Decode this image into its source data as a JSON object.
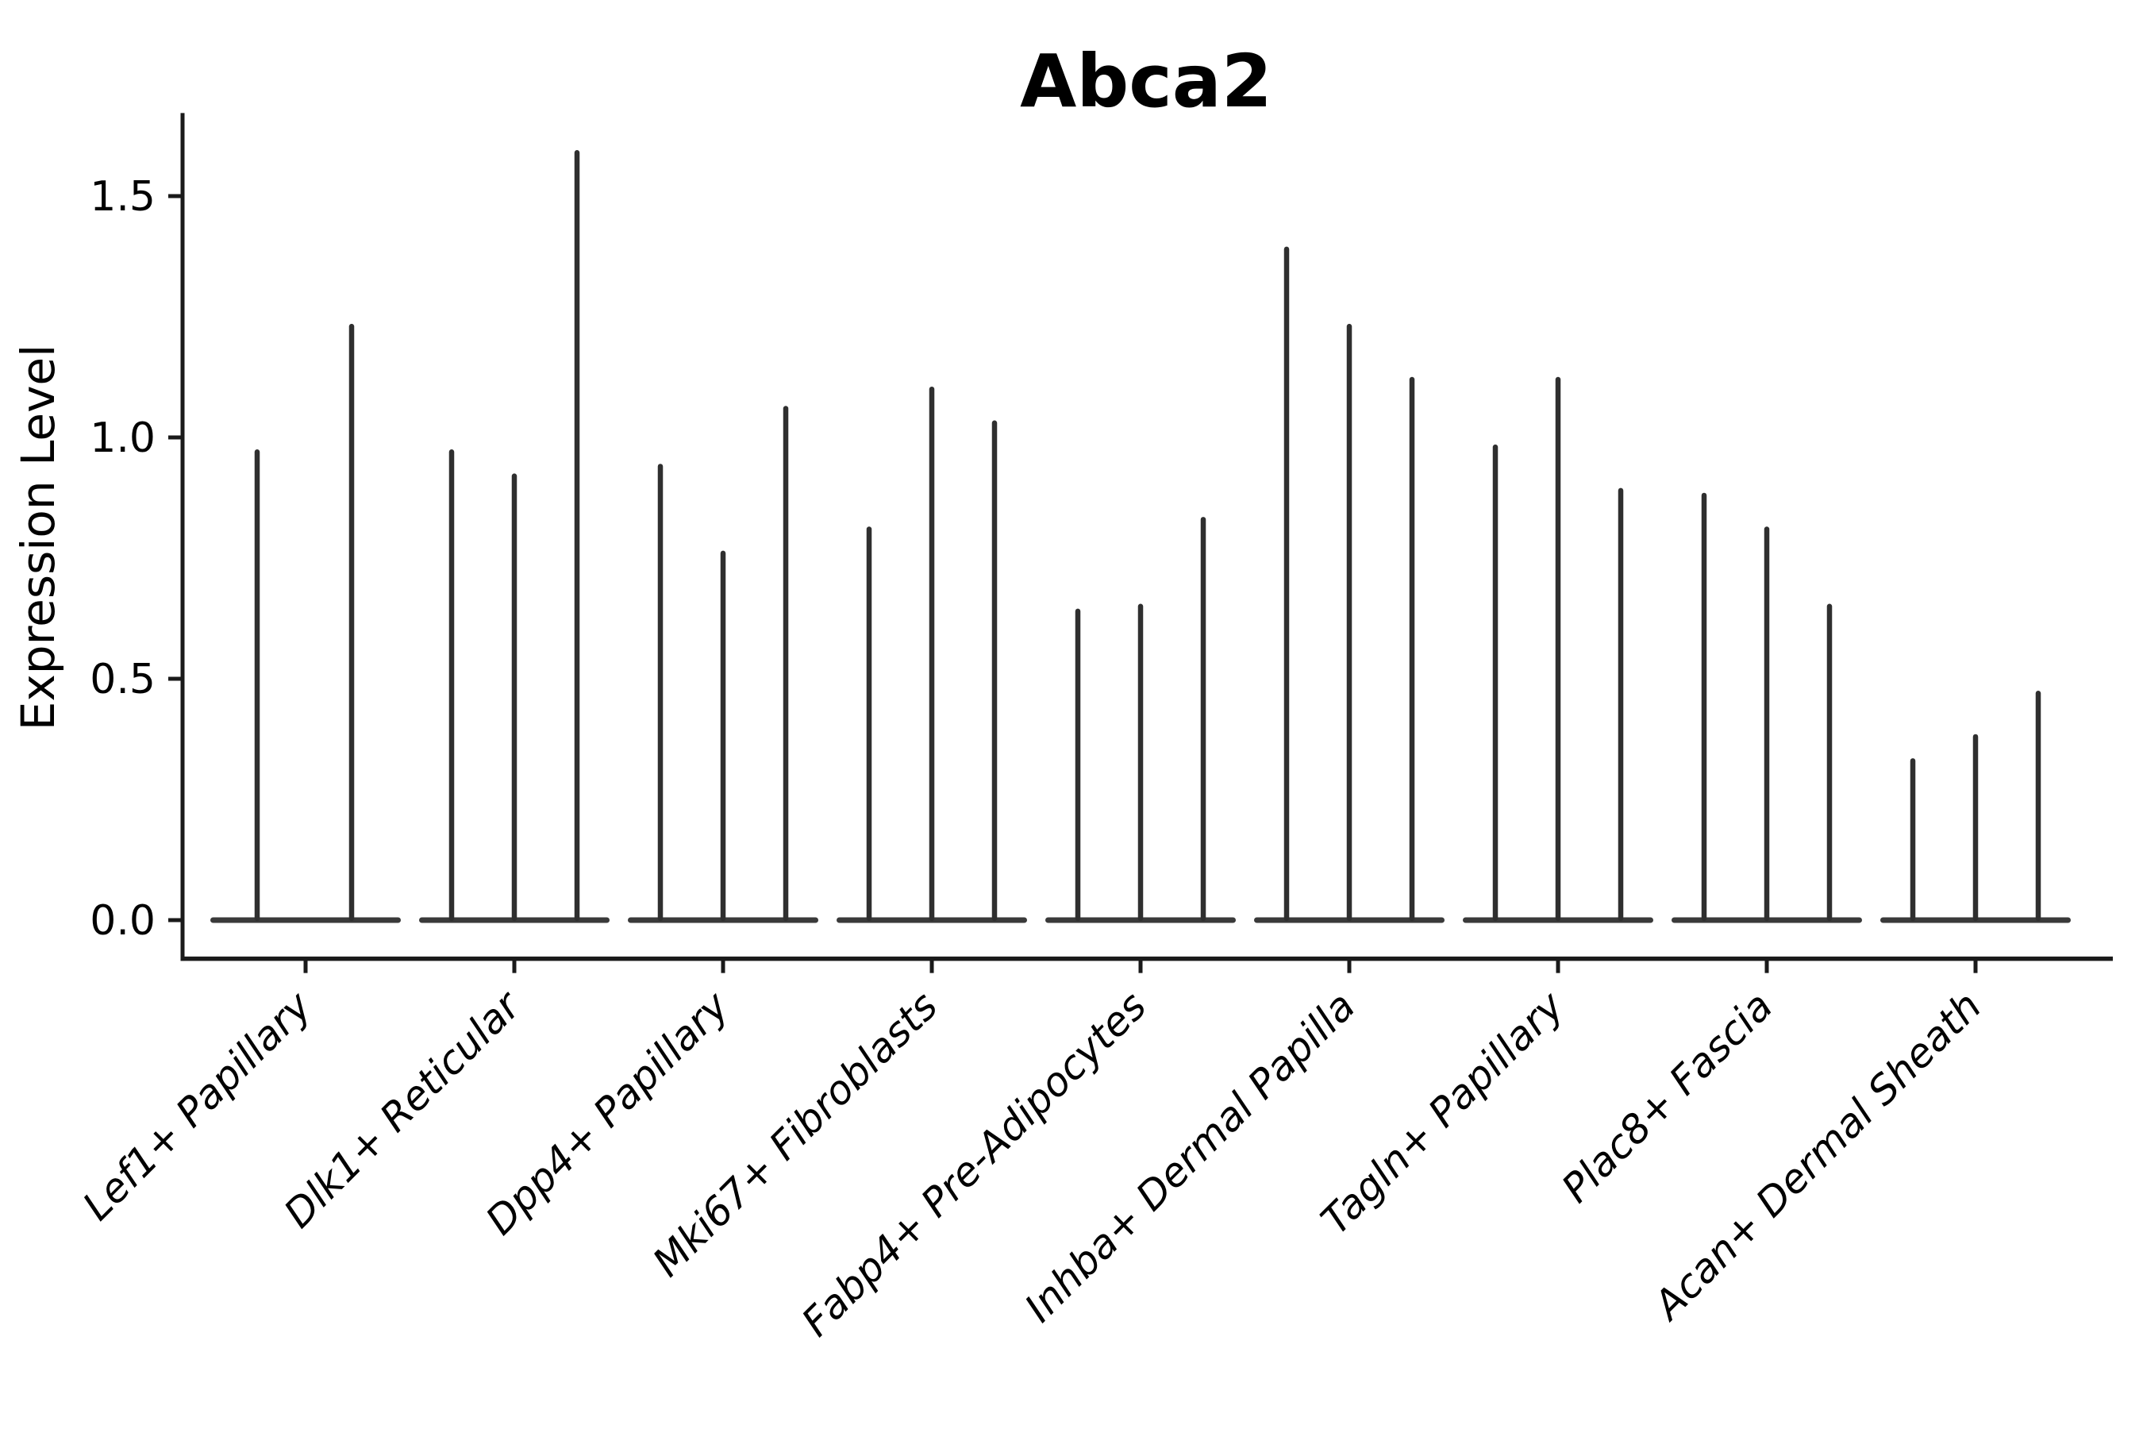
{
  "chart_data": {
    "type": "violin",
    "title": "Abca2",
    "xlabel": "",
    "ylabel": "Expression Level",
    "y_ticks": [
      1.5,
      1.0,
      0.5,
      0.0
    ],
    "y_tick_labels": [
      "1.5",
      "1.0",
      "0.5",
      "0.0"
    ],
    "ylim": [
      -0.08,
      1.672
    ],
    "grid": false,
    "legend": false,
    "categories": [
      "Lef1+ Papillary",
      "Dlk1+ Reticular",
      "Dpp4+ Papillary",
      "Mki67+ Fibroblasts",
      "Fabp4+ Pre-Adipocytes",
      "Inhba+ Dermal Papilla",
      "Tagln+ Papillary",
      "Plac8+ Fascia",
      "Acan+ Dermal Sheath"
    ],
    "series": [
      {
        "category": "Lef1+ Papillary",
        "spike_heights": [
          0.97,
          1.23
        ]
      },
      {
        "category": "Dlk1+ Reticular",
        "spike_heights": [
          0.97,
          0.92,
          1.59
        ]
      },
      {
        "category": "Dpp4+ Papillary",
        "spike_heights": [
          0.94,
          0.76,
          1.06
        ]
      },
      {
        "category": "Mki67+ Fibroblasts",
        "spike_heights": [
          0.81,
          1.1,
          1.03
        ]
      },
      {
        "category": "Fabp4+ Pre-Adipocytes",
        "spike_heights": [
          0.64,
          0.65,
          0.83
        ]
      },
      {
        "category": "Inhba+ Dermal Papilla",
        "spike_heights": [
          1.39,
          1.23,
          1.12
        ]
      },
      {
        "category": "Tagln+ Papillary",
        "spike_heights": [
          0.98,
          1.12,
          0.89
        ]
      },
      {
        "category": "Plac8+ Fascia",
        "spike_heights": [
          0.88,
          0.81,
          0.65
        ]
      },
      {
        "category": "Acan+ Dermal Sheath",
        "spike_heights": [
          0.33,
          0.38,
          0.47
        ]
      }
    ],
    "description": "Each category shows thin spike-like violins: a flat body at expression 0 with narrow spikes reaching the listed maxima."
  },
  "colors": {
    "spike": "#2f2f2f",
    "violin_base": "#3a3a3a",
    "axis": "#1a1a1a",
    "text": "#000000",
    "background": "#ffffff"
  }
}
